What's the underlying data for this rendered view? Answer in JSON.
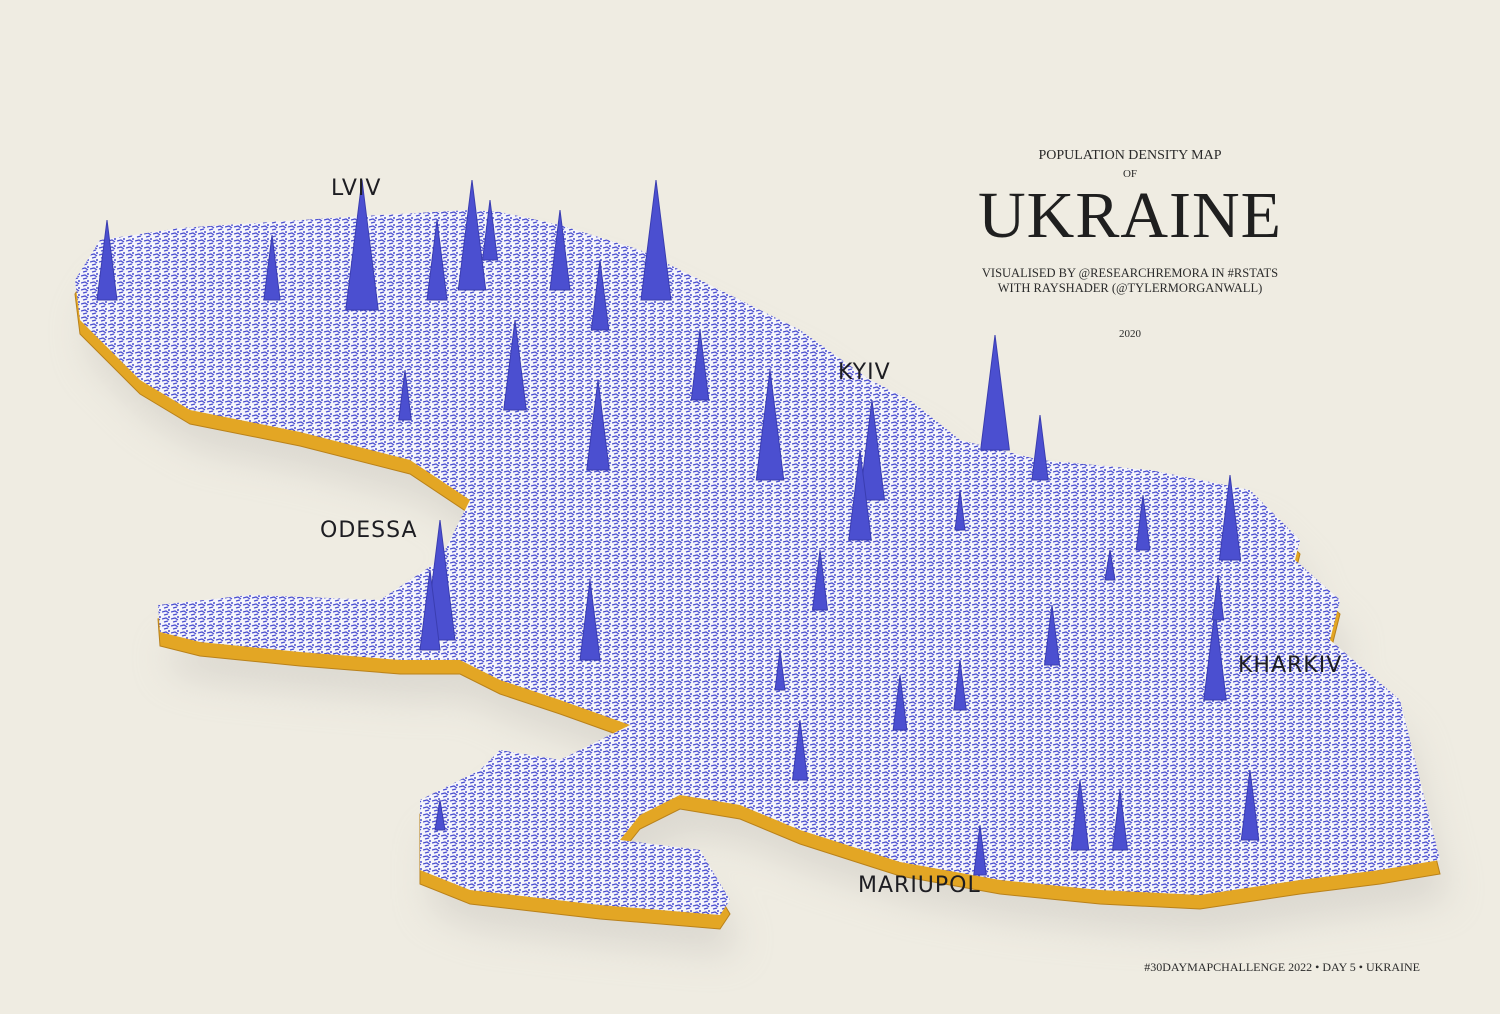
{
  "title": {
    "subtitle": "POPULATION DENSITY MAP",
    "of": "OF",
    "country": "UKRAINE",
    "credit_line1": "VISUALISED BY @RESEARCHREMORA IN #RSTATS",
    "credit_line2": "WITH RAYSHADER (@TYLERMORGANWALL)",
    "year": "2020"
  },
  "cities": {
    "lviv": "LVIV",
    "kyiv": "KYIV",
    "odessa": "ODESSA",
    "kharkiv": "KHARKIV",
    "mariupol": "MARIUPOL"
  },
  "footer": "#30DAYMAPCHALLENGE 2022 • DAY 5 • UKRAINE",
  "colors": {
    "background": "#efece2",
    "density": "#4b4fd0",
    "extrusion": "#e3a624",
    "surface": "#f4f4fa"
  }
}
